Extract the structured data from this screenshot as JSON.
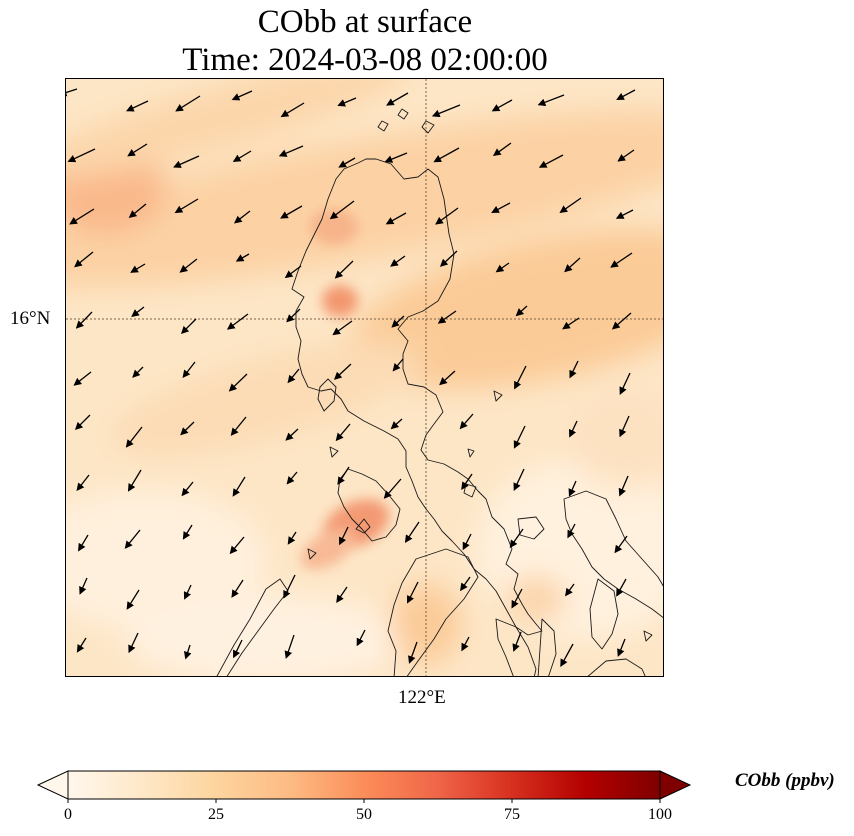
{
  "title": {
    "line1": "CObb at surface",
    "line2": "Time: 2024-03-08 02:00:00"
  },
  "map": {
    "lat_label": "16°N",
    "lon_label": "122°E",
    "gridline_color": "#7a6048",
    "coastline_color": "#1a1a1a",
    "wind_vector_color": "#000000"
  },
  "colorbar": {
    "label": "CObb (ppbv)",
    "ticks": [
      "0",
      "25",
      "50",
      "75",
      "100"
    ],
    "range": [
      0,
      100
    ],
    "colormap": "OrRd",
    "colors": [
      "#fff7ec",
      "#fee8c8",
      "#fdd49e",
      "#fdbb84",
      "#fc8d59",
      "#ef6548",
      "#d7301f",
      "#b30000",
      "#7f0000"
    ]
  }
}
